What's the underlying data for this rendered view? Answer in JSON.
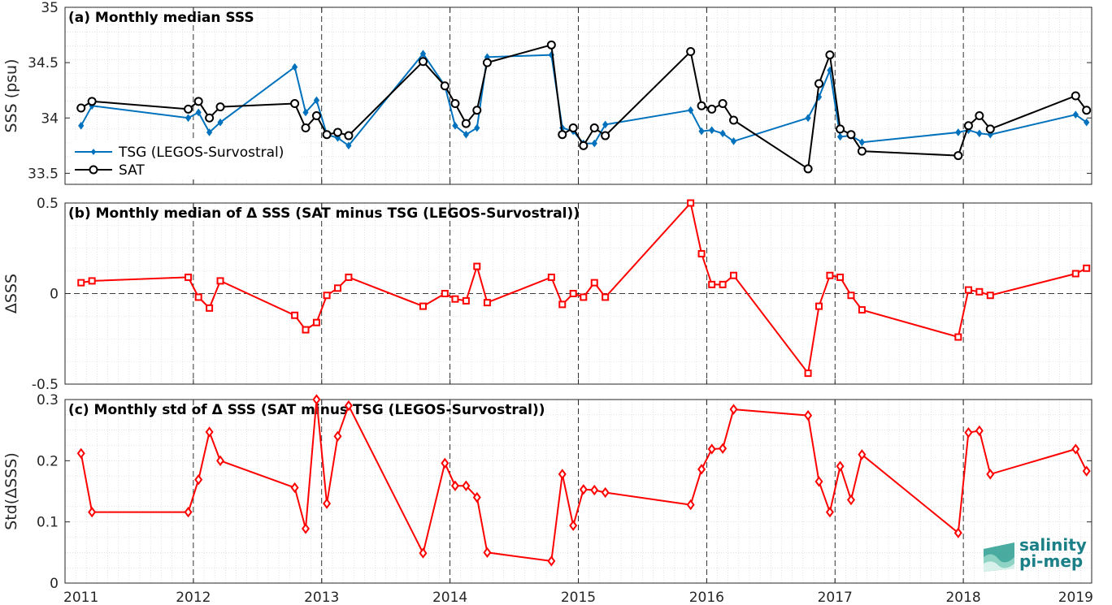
{
  "x_ticks": [
    "2011",
    "2012",
    "2013",
    "2014",
    "2015",
    "2016",
    "2017",
    "2018",
    "2019"
  ],
  "colors": {
    "tsg": "#0072BD",
    "sat": "#000000",
    "delta": "#FF0000",
    "dashed": "#000000",
    "logo_teal": "#2a9d8f",
    "logo_text": "#1a7f86"
  },
  "logo": {
    "line1": "salinity",
    "line2": "pi-mep",
    "icon": "salinity-wave-icon"
  },
  "chart_data": [
    {
      "type": "line",
      "title": "(a) Monthly median SSS",
      "xlabel": "",
      "ylabel": "SSS (psu)",
      "xlim": [
        2011,
        2019
      ],
      "ylim": [
        33.4,
        35
      ],
      "y_ticks": [
        33.5,
        34,
        34.5,
        35
      ],
      "y_tick_labels": [
        "33.5",
        "34",
        "34.5",
        "35"
      ],
      "grid": true,
      "legend_position": "bottom-left",
      "series": [
        {
          "name": "TSG (LEGOS-Survostral)",
          "marker": "diamond",
          "x": [
            2011.125,
            2011.21,
            2011.96,
            2012.04,
            2012.125,
            2012.21,
            2012.79,
            2012.875,
            2012.96,
            2013.04,
            2013.125,
            2013.21,
            2013.79,
            2013.96,
            2014.04,
            2014.125,
            2014.21,
            2014.29,
            2014.79,
            2014.875,
            2014.96,
            2015.04,
            2015.125,
            2015.21,
            2015.875,
            2015.96,
            2016.04,
            2016.125,
            2016.21,
            2016.79,
            2016.875,
            2016.96,
            2017.04,
            2017.125,
            2017.21,
            2017.96,
            2018.04,
            2018.125,
            2018.21,
            2018.875,
            2018.96
          ],
          "values": [
            33.93,
            34.11,
            34.0,
            34.05,
            33.87,
            33.96,
            34.46,
            34.05,
            34.16,
            33.85,
            33.82,
            33.75,
            34.58,
            34.29,
            33.93,
            33.85,
            33.91,
            34.55,
            34.57,
            33.91,
            33.88,
            33.77,
            33.77,
            33.94,
            34.07,
            33.88,
            33.89,
            33.86,
            33.79,
            34.0,
            34.19,
            34.43,
            33.83,
            33.84,
            33.78,
            33.87,
            33.89,
            33.86,
            33.85,
            34.03,
            33.96
          ]
        },
        {
          "name": "SAT",
          "marker": "circle",
          "x": [
            2011.125,
            2011.21,
            2011.96,
            2012.04,
            2012.125,
            2012.21,
            2012.79,
            2012.875,
            2012.96,
            2013.04,
            2013.125,
            2013.21,
            2013.79,
            2013.96,
            2014.04,
            2014.125,
            2014.21,
            2014.29,
            2014.79,
            2014.875,
            2014.96,
            2015.04,
            2015.125,
            2015.21,
            2015.875,
            2015.96,
            2016.04,
            2016.125,
            2016.21,
            2016.79,
            2016.875,
            2016.96,
            2017.04,
            2017.125,
            2017.21,
            2017.96,
            2018.04,
            2018.125,
            2018.21,
            2018.875,
            2018.96
          ],
          "values": [
            34.09,
            34.15,
            34.08,
            34.15,
            34.0,
            34.1,
            34.13,
            33.91,
            34.02,
            33.85,
            33.87,
            33.84,
            34.51,
            34.29,
            34.13,
            33.95,
            34.07,
            34.5,
            34.66,
            33.85,
            33.91,
            33.75,
            33.91,
            33.84,
            34.6,
            34.11,
            34.08,
            34.13,
            33.98,
            33.54,
            34.31,
            34.57,
            33.9,
            33.85,
            33.7,
            33.66,
            33.93,
            34.02,
            33.9,
            34.2,
            34.07
          ]
        }
      ]
    },
    {
      "type": "line",
      "title": "(b) Monthly median of Δ SSS (SAT minus TSG (LEGOS-Survostral))",
      "xlabel": "",
      "ylabel": "ΔSSS",
      "xlim": [
        2011,
        2019
      ],
      "ylim": [
        -0.5,
        0.5
      ],
      "y_ticks": [
        -0.5,
        0,
        0.5
      ],
      "y_tick_labels": [
        "-0.5",
        "0",
        "0.5"
      ],
      "grid": true,
      "zero_line": true,
      "series": [
        {
          "marker": "square",
          "x": [
            2011.125,
            2011.21,
            2011.96,
            2012.04,
            2012.125,
            2012.21,
            2012.79,
            2012.875,
            2012.96,
            2013.04,
            2013.125,
            2013.21,
            2013.79,
            2013.96,
            2014.04,
            2014.125,
            2014.21,
            2014.29,
            2014.79,
            2014.875,
            2014.96,
            2015.04,
            2015.125,
            2015.21,
            2015.875,
            2015.96,
            2016.04,
            2016.125,
            2016.21,
            2016.79,
            2016.875,
            2016.96,
            2017.04,
            2017.125,
            2017.21,
            2017.96,
            2018.04,
            2018.125,
            2018.21,
            2018.875,
            2018.96
          ],
          "values": [
            0.06,
            0.07,
            0.09,
            -0.02,
            -0.08,
            0.07,
            -0.12,
            -0.2,
            -0.16,
            -0.01,
            0.03,
            0.09,
            -0.07,
            0.0,
            -0.03,
            -0.04,
            0.15,
            -0.05,
            0.09,
            -0.06,
            0.0,
            -0.02,
            0.06,
            -0.02,
            0.5,
            0.22,
            0.05,
            0.05,
            0.1,
            -0.44,
            -0.07,
            0.1,
            0.09,
            -0.01,
            -0.09,
            -0.24,
            0.02,
            0.01,
            -0.01,
            0.11,
            0.14
          ]
        }
      ]
    },
    {
      "type": "line",
      "title": "(c) Monthly std of Δ SSS (SAT minus TSG (LEGOS-Survostral))",
      "xlabel": "",
      "ylabel": "Std(ΔSSS)",
      "xlim": [
        2011,
        2019
      ],
      "ylim": [
        0,
        0.3
      ],
      "y_ticks": [
        0,
        0.1,
        0.2,
        0.3
      ],
      "y_tick_labels": [
        "0",
        "0.1",
        "0.2",
        "0.3"
      ],
      "grid": true,
      "series": [
        {
          "marker": "diamond",
          "x": [
            2011.125,
            2011.21,
            2011.96,
            2012.04,
            2012.125,
            2012.21,
            2012.79,
            2012.875,
            2012.96,
            2013.04,
            2013.125,
            2013.21,
            2013.79,
            2013.96,
            2014.04,
            2014.125,
            2014.21,
            2014.29,
            2014.79,
            2014.875,
            2014.96,
            2015.04,
            2015.125,
            2015.21,
            2015.875,
            2015.96,
            2016.04,
            2016.125,
            2016.21,
            2016.79,
            2016.875,
            2016.96,
            2017.04,
            2017.125,
            2017.21,
            2017.96,
            2018.04,
            2018.125,
            2018.21,
            2018.875,
            2018.96
          ],
          "values": [
            0.212,
            0.116,
            0.116,
            0.169,
            0.247,
            0.2,
            0.156,
            0.089,
            0.3,
            0.13,
            0.24,
            0.29,
            0.049,
            0.196,
            0.159,
            0.159,
            0.14,
            0.05,
            0.036,
            0.178,
            0.094,
            0.153,
            0.152,
            0.148,
            0.128,
            0.186,
            0.219,
            0.22,
            0.284,
            0.274,
            0.166,
            0.116,
            0.191,
            0.136,
            0.21,
            0.082,
            0.246,
            0.249,
            0.178,
            0.219,
            0.183
          ]
        }
      ]
    }
  ]
}
